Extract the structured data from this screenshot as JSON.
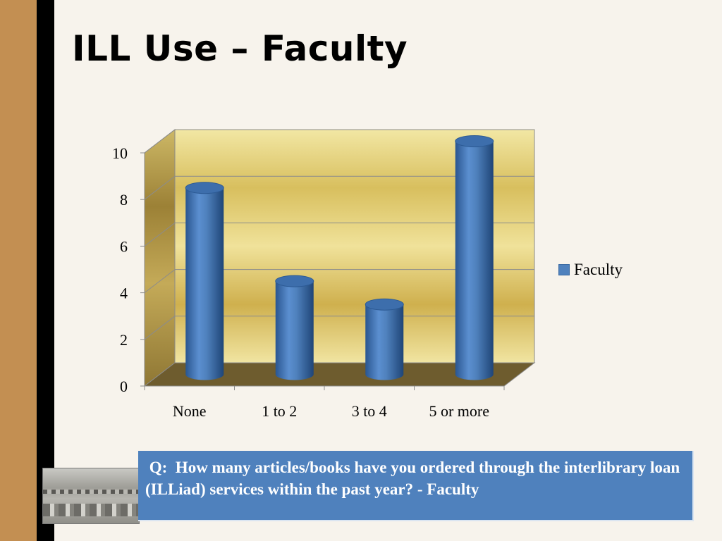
{
  "slide": {
    "title": "ILL Use – Faculty",
    "question": " Q:  How many articles/books have you ordered through the interlibrary loan (ILLiad) services within the past year? - Faculty"
  },
  "colors": {
    "bar": "#4f81bd",
    "side_band": "#c38f52",
    "question_box": "#4f81bd"
  },
  "chart_data": {
    "type": "bar",
    "style": "3d-cylinder",
    "title": "",
    "xlabel": "",
    "ylabel": "",
    "categories": [
      "None",
      "1 to 2",
      "3 to 4",
      "5 or more"
    ],
    "series": [
      {
        "name": "Faculty",
        "values": [
          8,
          4,
          3,
          10
        ],
        "color": "#4f81bd"
      }
    ],
    "ylim": [
      0,
      10
    ],
    "yticks": [
      0,
      2,
      4,
      6,
      8,
      10
    ],
    "grid": true,
    "legend": "right"
  }
}
